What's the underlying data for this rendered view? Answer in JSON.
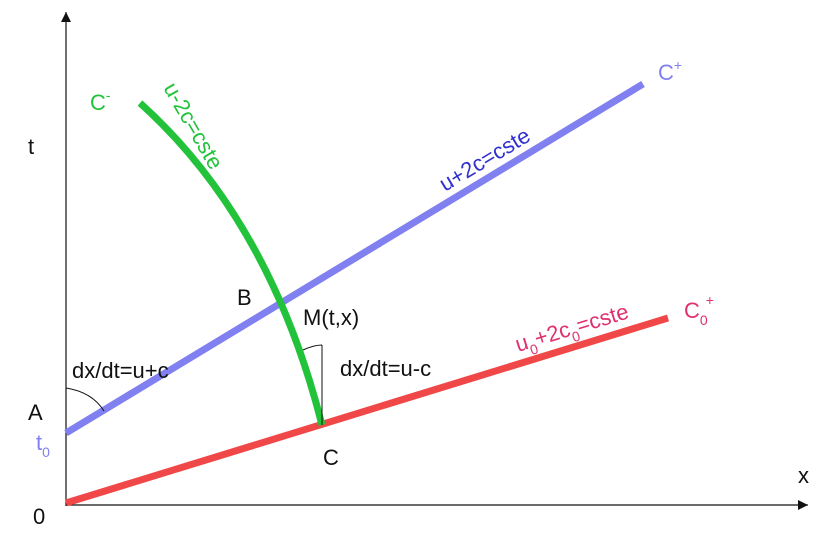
{
  "axes": {
    "t": "t",
    "x": "x",
    "origin": "0"
  },
  "points": {
    "A": "A",
    "t0": [
      "t",
      "0"
    ],
    "B": "B",
    "C": "C",
    "M": "M(t,x)"
  },
  "curves": {
    "c_minus": {
      "label": [
        "C",
        "-"
      ],
      "invariant": "u-2c=cste"
    },
    "c_plus": {
      "label": [
        "C",
        "+"
      ],
      "invariant": "u+2c=cste"
    },
    "c0_plus": {
      "label": [
        "C",
        "0",
        "+"
      ],
      "invariant": [
        "u",
        "0",
        "+2c",
        "0",
        "=cste"
      ]
    }
  },
  "slopes": {
    "at_A": "dx/dt=u+c",
    "at_M": "dx/dt=u-c"
  }
}
